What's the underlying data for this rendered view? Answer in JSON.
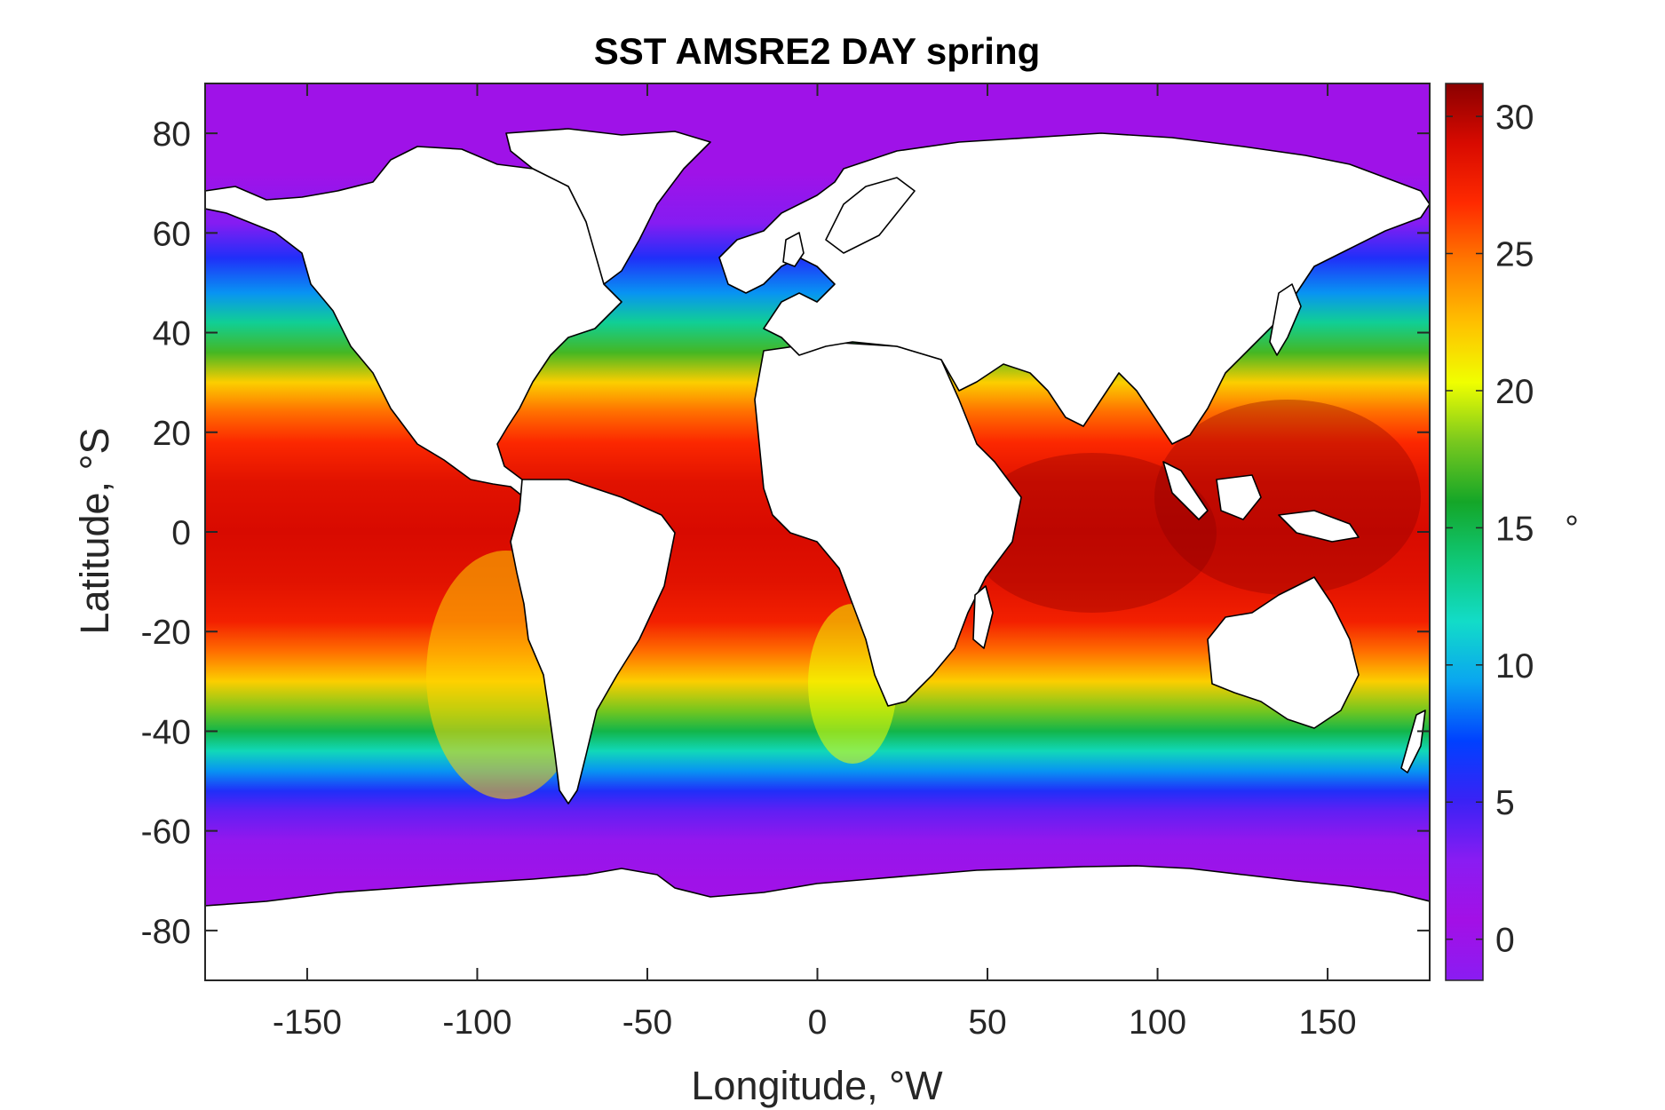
{
  "title": "SST AMSRE2 DAY spring",
  "x_axis": {
    "label": "Longitude, °W",
    "range": [
      -180,
      180
    ],
    "ticks": [
      -150,
      -100,
      -50,
      0,
      50,
      100,
      150
    ],
    "tick_labels": [
      "-150",
      "-100",
      "-50",
      "0",
      "50",
      "100",
      "150"
    ]
  },
  "y_axis": {
    "label": "Latitude, °S",
    "range": [
      -90,
      90
    ],
    "ticks": [
      80,
      60,
      40,
      20,
      0,
      -20,
      -40,
      -60,
      -80
    ],
    "tick_labels": [
      "80",
      "60",
      "40",
      "20",
      "0",
      "-20",
      "-40",
      "-60",
      "-80"
    ]
  },
  "colorbar": {
    "label": "°",
    "range": [
      -1.5,
      31.2
    ],
    "ticks": [
      0,
      5,
      10,
      15,
      20,
      25,
      30
    ],
    "tick_labels": [
      "0",
      "5",
      "10",
      "15",
      "20",
      "25",
      "30"
    ],
    "colormap": [
      "#8a1cf2",
      "#a310e6",
      "#8a1cf2",
      "#3a22f5",
      "#0040ff",
      "#0aa6f0",
      "#12dcc8",
      "#0fc878",
      "#14a628",
      "#78c81e",
      "#f0ff00",
      "#ffc000",
      "#ff7a00",
      "#ff2a00",
      "#d80a00",
      "#8a0000"
    ]
  },
  "chart_data": {
    "type": "heatmap",
    "title": "SST AMSRE2 DAY spring",
    "xlabel": "Longitude, °W",
    "ylabel": "Latitude, °S",
    "xlim": [
      -180,
      180
    ],
    "ylim": [
      -90,
      90
    ],
    "clim": [
      -1.5,
      31.2
    ],
    "colorbar_label": "°",
    "zonal_profile": {
      "lat": [
        72,
        62,
        55,
        48,
        42,
        36,
        30,
        24,
        18,
        10,
        0,
        -10,
        -18,
        -24,
        -30,
        -36,
        -40,
        -44,
        -48,
        -52,
        -56,
        -62,
        -70,
        -78
      ],
      "sst": [
        1,
        3,
        6,
        9,
        13,
        17,
        22,
        25,
        27,
        28.5,
        29,
        28.5,
        27.5,
        25,
        22,
        18,
        15,
        12,
        9,
        6,
        4,
        2,
        1,
        0.5
      ]
    }
  }
}
